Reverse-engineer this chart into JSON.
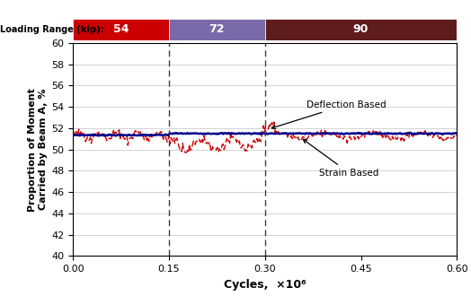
{
  "xlabel": "Cycles,  ×10⁶",
  "ylabel": "Proportion of Moment\nCarried by Beam A, %",
  "xlim": [
    0.0,
    0.6
  ],
  "ylim": [
    40,
    60
  ],
  "yticks": [
    40,
    42,
    44,
    46,
    48,
    50,
    52,
    54,
    56,
    58,
    60
  ],
  "xticks": [
    0.0,
    0.15,
    0.3,
    0.45,
    0.6
  ],
  "xtick_labels": [
    "0.00",
    "0.15",
    "0.30",
    "0.45",
    "0.60"
  ],
  "vlines": [
    0.15,
    0.3
  ],
  "loading_label_text": "Loading Range (kip):",
  "loading_labels": [
    "54",
    "72",
    "90"
  ],
  "loading_colors": [
    "#cc0000",
    "#7b6aaa",
    "#5e1c1c"
  ],
  "loading_ranges": [
    [
      0.0,
      0.15
    ],
    [
      0.15,
      0.3
    ],
    [
      0.3,
      0.6
    ]
  ],
  "deflection_color": "#00008b",
  "strain_color": "#cc0000",
  "grid_color": "#c0c0c0",
  "annotation_deflection": "Deflection Based",
  "annotation_strain": "Strain Based"
}
